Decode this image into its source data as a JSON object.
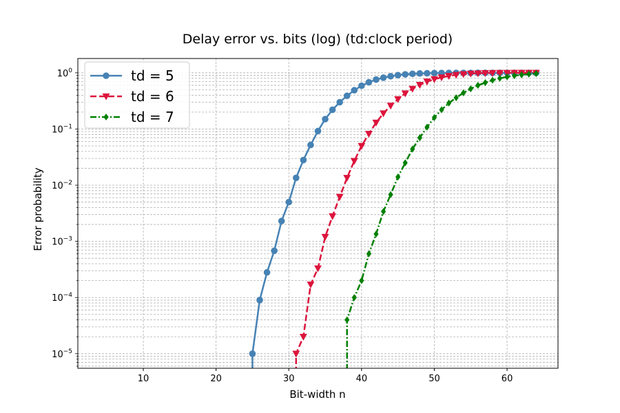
{
  "chart_data": {
    "type": "line",
    "title": "Delay error vs. bits (log) (td:clock period)",
    "xlabel": "Bit-width n",
    "ylabel": "Error probability",
    "xlim": [
      1,
      67
    ],
    "ylim": [
      5.5e-06,
      1.8
    ],
    "yscale": "log",
    "xticks": [
      10,
      20,
      30,
      40,
      50,
      60
    ],
    "yticks": [
      {
        "value": 1e-05,
        "base": "10",
        "exp": "−5"
      },
      {
        "value": 0.0001,
        "base": "10",
        "exp": "−4"
      },
      {
        "value": 0.001,
        "base": "10",
        "exp": "−3"
      },
      {
        "value": 0.01,
        "base": "10",
        "exp": "−2"
      },
      {
        "value": 0.1,
        "base": "10",
        "exp": "−1"
      },
      {
        "value": 1,
        "base": "10",
        "exp": "0"
      }
    ],
    "grid": true,
    "legend": "top-left",
    "series": [
      {
        "name": "td = 5",
        "color": "#4682b4",
        "marker": "circle",
        "linestyle": "solid",
        "x": [
          25,
          26,
          27,
          28,
          29,
          30,
          31,
          32,
          33,
          34,
          35,
          36,
          37,
          38,
          39,
          40,
          41,
          42,
          43,
          44,
          45,
          46,
          47,
          48,
          49,
          50,
          51,
          52,
          53,
          54,
          55,
          56,
          57,
          58,
          59,
          60,
          61,
          62,
          63,
          64
        ],
        "y": [
          1e-05,
          9e-05,
          0.00028,
          0.00068,
          0.0023,
          0.005,
          0.0135,
          0.028,
          0.052,
          0.092,
          0.15,
          0.22,
          0.3,
          0.39,
          0.49,
          0.59,
          0.68,
          0.76,
          0.82,
          0.87,
          0.91,
          0.94,
          0.96,
          0.975,
          0.985,
          0.99,
          0.994,
          0.996,
          0.998,
          0.999,
          0.999,
          1,
          1,
          1,
          1,
          1,
          1,
          1,
          1,
          1
        ],
        "below_axis": true
      },
      {
        "name": "td = 6",
        "color": "#dc143c",
        "marker": "triangle-down",
        "linestyle": "dashed",
        "x": [
          31,
          32,
          33,
          34,
          35,
          36,
          37,
          38,
          39,
          40,
          41,
          42,
          43,
          44,
          45,
          46,
          47,
          48,
          49,
          50,
          51,
          52,
          53,
          54,
          55,
          56,
          57,
          58,
          59,
          60,
          61,
          62,
          63,
          64
        ],
        "y": [
          1e-05,
          2e-05,
          0.00017,
          0.00033,
          0.0012,
          0.0028,
          0.0062,
          0.0135,
          0.027,
          0.05,
          0.082,
          0.13,
          0.19,
          0.26,
          0.34,
          0.43,
          0.52,
          0.61,
          0.7,
          0.77,
          0.83,
          0.88,
          0.92,
          0.95,
          0.97,
          0.98,
          0.99,
          0.995,
          0.998,
          0.999,
          1,
          1,
          1,
          1
        ],
        "below_axis": true
      },
      {
        "name": "td = 7",
        "color": "#008000",
        "marker": "diamond",
        "linestyle": "dashdot",
        "x": [
          38,
          39,
          40,
          41,
          42,
          43,
          44,
          45,
          46,
          47,
          48,
          49,
          50,
          51,
          52,
          53,
          54,
          55,
          56,
          57,
          58,
          59,
          60,
          61,
          62,
          63,
          64
        ],
        "y": [
          4e-05,
          0.0001,
          0.0002,
          0.0006,
          0.00135,
          0.0034,
          0.0068,
          0.014,
          0.025,
          0.044,
          0.07,
          0.108,
          0.16,
          0.22,
          0.29,
          0.36,
          0.44,
          0.52,
          0.6,
          0.67,
          0.74,
          0.8,
          0.85,
          0.89,
          0.92,
          0.95,
          0.97
        ],
        "below_axis": true
      }
    ]
  }
}
